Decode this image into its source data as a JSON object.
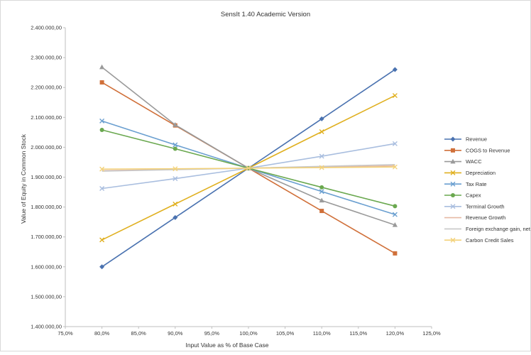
{
  "chart_data": {
    "type": "line",
    "title": "SensIt 1.40 Academic Version",
    "xlabel": "Input Value as % of Base Case",
    "ylabel": "Value of Equity in Common Stock",
    "xlim": [
      75,
      125
    ],
    "ylim": [
      1400000,
      2400000
    ],
    "x_ticks": [
      75,
      80,
      85,
      90,
      95,
      100,
      105,
      110,
      115,
      120,
      125
    ],
    "x_tick_labels": [
      "75,0%",
      "80,0%",
      "85,0%",
      "90,0%",
      "95,0%",
      "100,0%",
      "105,0%",
      "110,0%",
      "115,0%",
      "120,0%",
      "125,0%"
    ],
    "y_ticks": [
      1400000,
      1500000,
      1600000,
      1700000,
      1800000,
      1900000,
      2000000,
      2100000,
      2200000,
      2300000,
      2400000
    ],
    "y_tick_labels": [
      "1.400.000,00",
      "1.500.000,00",
      "1.600.000,00",
      "1.700.000,00",
      "1.800.000,00",
      "1.900.000,00",
      "2.000.000,00",
      "2.100.000,00",
      "2.200.000,00",
      "2.300.000,00",
      "2.400.000,00"
    ],
    "grid": false,
    "legend_position": "right",
    "x": [
      80,
      90,
      100,
      110,
      120
    ],
    "series": [
      {
        "name": "Revenue",
        "color": "#4a72b0",
        "marker": "diamond",
        "values": [
          1600000,
          1765000,
          1930000,
          2095000,
          2260000
        ]
      },
      {
        "name": "COGS to Revenue",
        "color": "#d0703a",
        "marker": "square",
        "values": [
          2217000,
          2073000,
          1930000,
          1787000,
          1645000
        ]
      },
      {
        "name": "WACC",
        "color": "#9a9a9a",
        "marker": "triangle",
        "values": [
          2268000,
          2075000,
          1930000,
          1822000,
          1740000
        ]
      },
      {
        "name": "Depreciation",
        "color": "#e0b020",
        "marker": "x",
        "values": [
          1690000,
          1810000,
          1930000,
          2052000,
          2173000
        ]
      },
      {
        "name": "Tax Rate",
        "color": "#6a9fd0",
        "marker": "x",
        "values": [
          2088000,
          2008000,
          1930000,
          1852000,
          1775000
        ]
      },
      {
        "name": "Capex",
        "color": "#6aa84f",
        "marker": "circle",
        "values": [
          2058000,
          1995000,
          1930000,
          1866000,
          1803000
        ]
      },
      {
        "name": "Terminal Growth",
        "color": "#a9bedf",
        "marker": "x",
        "values": [
          1862000,
          1895000,
          1930000,
          1970000,
          2012000
        ]
      },
      {
        "name": "Revenue Growth",
        "color": "#e6b9a4",
        "marker": "none",
        "values": [
          1922000,
          1926000,
          1930000,
          1934000,
          1938000
        ]
      },
      {
        "name": "Foreign exchange gain, net",
        "color": "#c8c8c8",
        "marker": "none",
        "values": [
          1920000,
          1925000,
          1930000,
          1936000,
          1942000
        ]
      },
      {
        "name": "Carbon Credit Sales",
        "color": "#f3d27a",
        "marker": "x",
        "values": [
          1927000,
          1928000,
          1930000,
          1932000,
          1934000
        ]
      }
    ]
  }
}
